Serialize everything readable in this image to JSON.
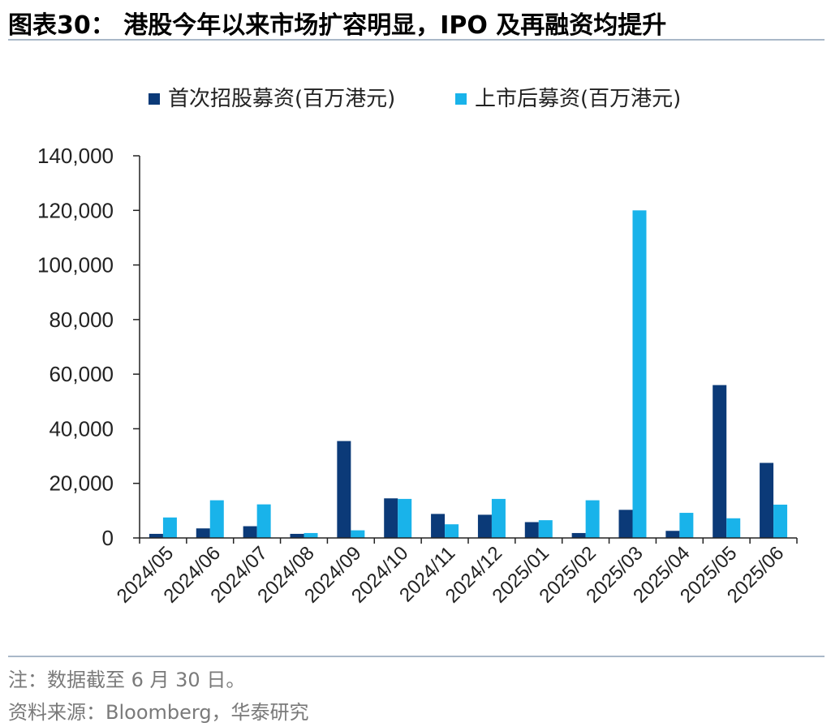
{
  "header": {
    "title": "图表30： 港股今年以来市场扩容明显，IPO 及再融资均提升"
  },
  "footer": {
    "note": "注：数据截至 6 月 30 日。",
    "source": "资料来源：Bloomberg，华泰研究"
  },
  "colors": {
    "series1": "#0b3a78",
    "series2": "#19b3ea",
    "axis": "#222222"
  },
  "chart_data": {
    "type": "bar",
    "categories": [
      "2024/05",
      "2024/06",
      "2024/07",
      "2024/08",
      "2024/09",
      "2024/10",
      "2024/11",
      "2024/12",
      "2025/01",
      "2025/02",
      "2025/03",
      "2025/04",
      "2025/05",
      "2025/06"
    ],
    "series": [
      {
        "name": "首次招股募资(百万港元)",
        "values": [
          1500,
          3500,
          4300,
          1500,
          35500,
          14500,
          8800,
          8500,
          5800,
          1800,
          10300,
          2600,
          56000,
          27500
        ]
      },
      {
        "name": "上市后募资(百万港元)",
        "values": [
          7500,
          13800,
          12300,
          1800,
          2800,
          14300,
          5000,
          14300,
          6500,
          13800,
          120000,
          9200,
          7200,
          12200
        ]
      }
    ],
    "ylim": [
      0,
      140000
    ],
    "yticks": [
      0,
      20000,
      40000,
      60000,
      80000,
      100000,
      120000,
      140000
    ],
    "ytick_labels": [
      "0",
      "20,000",
      "40,000",
      "60,000",
      "80,000",
      "100,000",
      "120,000",
      "140,000"
    ],
    "legend_position": "top",
    "grid": false
  }
}
